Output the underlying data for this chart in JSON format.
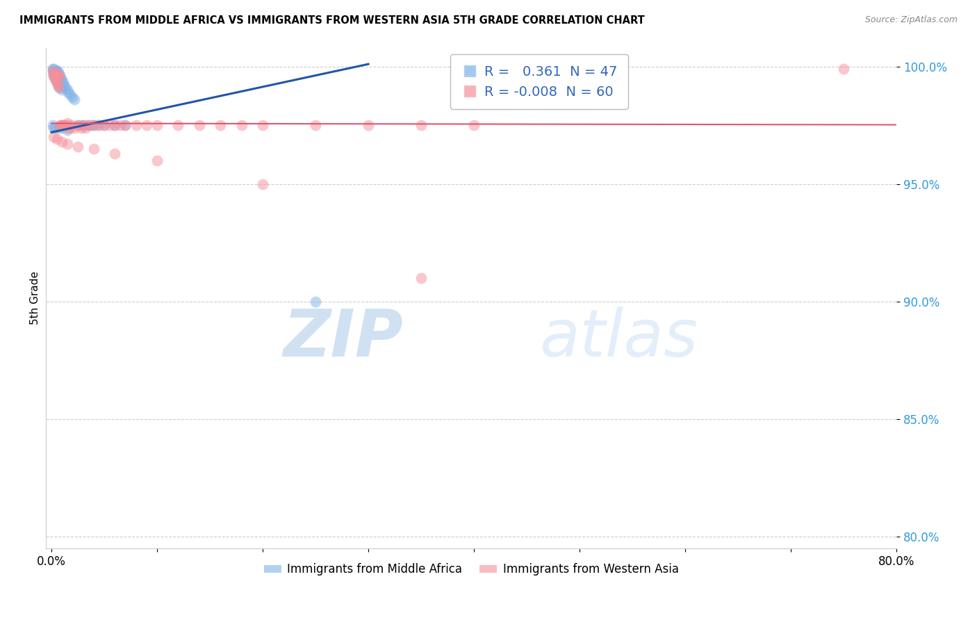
{
  "title": "IMMIGRANTS FROM MIDDLE AFRICA VS IMMIGRANTS FROM WESTERN ASIA 5TH GRADE CORRELATION CHART",
  "source": "Source: ZipAtlas.com",
  "ylabel": "5th Grade",
  "blue_R": 0.361,
  "blue_N": 47,
  "pink_R": -0.008,
  "pink_N": 60,
  "blue_color": "#7EB3E8",
  "pink_color": "#F4909A",
  "blue_line_color": "#2255AA",
  "pink_line_color": "#E05575",
  "legend_label_blue": "Immigrants from Middle Africa",
  "legend_label_pink": "Immigrants from Western Asia",
  "blue_scatter_x": [
    0.001,
    0.001,
    0.002,
    0.002,
    0.002,
    0.003,
    0.003,
    0.003,
    0.004,
    0.004,
    0.005,
    0.005,
    0.005,
    0.006,
    0.006,
    0.007,
    0.007,
    0.008,
    0.008,
    0.009,
    0.01,
    0.01,
    0.011,
    0.012,
    0.013,
    0.015,
    0.016,
    0.018,
    0.02,
    0.022,
    0.025,
    0.028,
    0.03,
    0.035,
    0.038,
    0.04,
    0.045,
    0.05,
    0.06,
    0.07,
    0.001,
    0.002,
    0.003,
    0.007,
    0.01,
    0.015,
    0.25
  ],
  "blue_scatter_y": [
    0.999,
    0.998,
    0.999,
    0.997,
    0.996,
    0.998,
    0.997,
    0.996,
    0.998,
    0.995,
    0.998,
    0.996,
    0.994,
    0.998,
    0.993,
    0.997,
    0.992,
    0.996,
    0.991,
    0.995,
    0.994,
    0.99,
    0.993,
    0.992,
    0.991,
    0.99,
    0.989,
    0.988,
    0.987,
    0.986,
    0.975,
    0.975,
    0.975,
    0.975,
    0.975,
    0.975,
    0.975,
    0.975,
    0.975,
    0.975,
    0.975,
    0.974,
    0.974,
    0.974,
    0.974,
    0.973,
    0.9
  ],
  "pink_scatter_x": [
    0.001,
    0.002,
    0.002,
    0.003,
    0.003,
    0.004,
    0.004,
    0.005,
    0.005,
    0.006,
    0.006,
    0.007,
    0.007,
    0.008,
    0.009,
    0.01,
    0.011,
    0.012,
    0.013,
    0.015,
    0.015,
    0.016,
    0.018,
    0.02,
    0.022,
    0.025,
    0.028,
    0.03,
    0.032,
    0.035,
    0.04,
    0.045,
    0.05,
    0.055,
    0.06,
    0.065,
    0.07,
    0.08,
    0.09,
    0.1,
    0.12,
    0.14,
    0.16,
    0.18,
    0.2,
    0.25,
    0.3,
    0.35,
    0.4,
    0.75,
    0.002,
    0.005,
    0.01,
    0.015,
    0.025,
    0.04,
    0.06,
    0.1,
    0.2,
    0.35
  ],
  "pink_scatter_y": [
    0.998,
    0.997,
    0.996,
    0.997,
    0.995,
    0.996,
    0.994,
    0.997,
    0.993,
    0.996,
    0.992,
    0.996,
    0.991,
    0.975,
    0.975,
    0.975,
    0.975,
    0.975,
    0.975,
    0.976,
    0.974,
    0.975,
    0.974,
    0.975,
    0.974,
    0.975,
    0.974,
    0.975,
    0.974,
    0.975,
    0.975,
    0.975,
    0.975,
    0.975,
    0.975,
    0.975,
    0.975,
    0.975,
    0.975,
    0.975,
    0.975,
    0.975,
    0.975,
    0.975,
    0.975,
    0.975,
    0.975,
    0.975,
    0.975,
    0.999,
    0.97,
    0.969,
    0.968,
    0.967,
    0.966,
    0.965,
    0.963,
    0.96,
    0.95,
    0.91
  ],
  "xlim": [
    -0.005,
    0.8
  ],
  "ylim": [
    0.795,
    1.008
  ],
  "ytick_vals": [
    0.8,
    0.85,
    0.9,
    0.95,
    1.0
  ],
  "ytick_labels": [
    "80.0%",
    "85.0%",
    "90.0%",
    "95.0%",
    "100.0%"
  ],
  "xtick_vals": [
    0.0,
    0.1,
    0.2,
    0.3,
    0.4,
    0.5,
    0.6,
    0.7,
    0.8
  ],
  "xtick_first": "0.0%",
  "xtick_last": "80.0%",
  "blue_line_x": [
    0.0,
    0.3
  ],
  "blue_line_y": [
    0.972,
    1.001
  ],
  "pink_line_x": [
    0.0,
    0.8
  ],
  "pink_line_y": [
    0.9758,
    0.9752
  ]
}
